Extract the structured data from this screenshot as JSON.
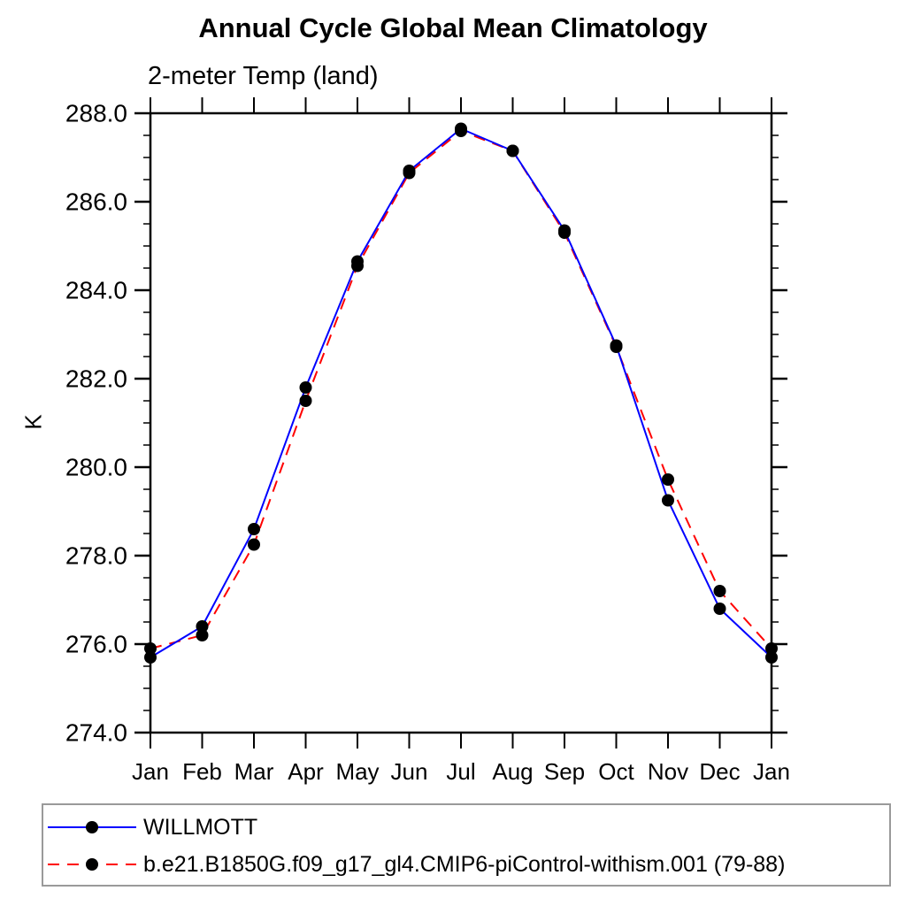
{
  "chart_data": {
    "type": "line",
    "title": "Annual Cycle Global Mean Climatology",
    "subtitle": "2-meter Temp (land)",
    "ylabel": "K",
    "xlabel": "",
    "categories": [
      "Jan",
      "Feb",
      "Mar",
      "Apr",
      "May",
      "Jun",
      "Jul",
      "Aug",
      "Sep",
      "Oct",
      "Nov",
      "Dec",
      "Jan"
    ],
    "ylim": [
      274.0,
      288.0
    ],
    "ytick_major_step": 2.0,
    "ytick_minor_step": 0.5,
    "ytick_labels": [
      "274.0",
      "276.0",
      "278.0",
      "280.0",
      "282.0",
      "284.0",
      "286.0",
      "288.0"
    ],
    "grid": false,
    "legend_position": "bottom-left-box",
    "axis_color": "#000000",
    "marker_radius_px": 7,
    "series": [
      {
        "name": "WILLMOTT",
        "color": "#0000ff",
        "style": "solid",
        "marker": "filled-circle",
        "marker_color": "#000000",
        "values": [
          275.7,
          276.4,
          278.6,
          281.8,
          284.65,
          286.7,
          287.65,
          287.15,
          285.35,
          282.75,
          279.25,
          276.8,
          275.7
        ]
      },
      {
        "name": "b.e21.B1850G.f09_g17_gl4.CMIP6-piControl-withism.001 (79-88)",
        "color": "#ff0000",
        "style": "dashed",
        "marker": "filled-circle",
        "marker_color": "#000000",
        "values": [
          275.9,
          276.2,
          278.25,
          281.5,
          284.55,
          286.65,
          287.6,
          287.15,
          285.3,
          282.72,
          279.72,
          277.2,
          275.9
        ]
      }
    ]
  }
}
